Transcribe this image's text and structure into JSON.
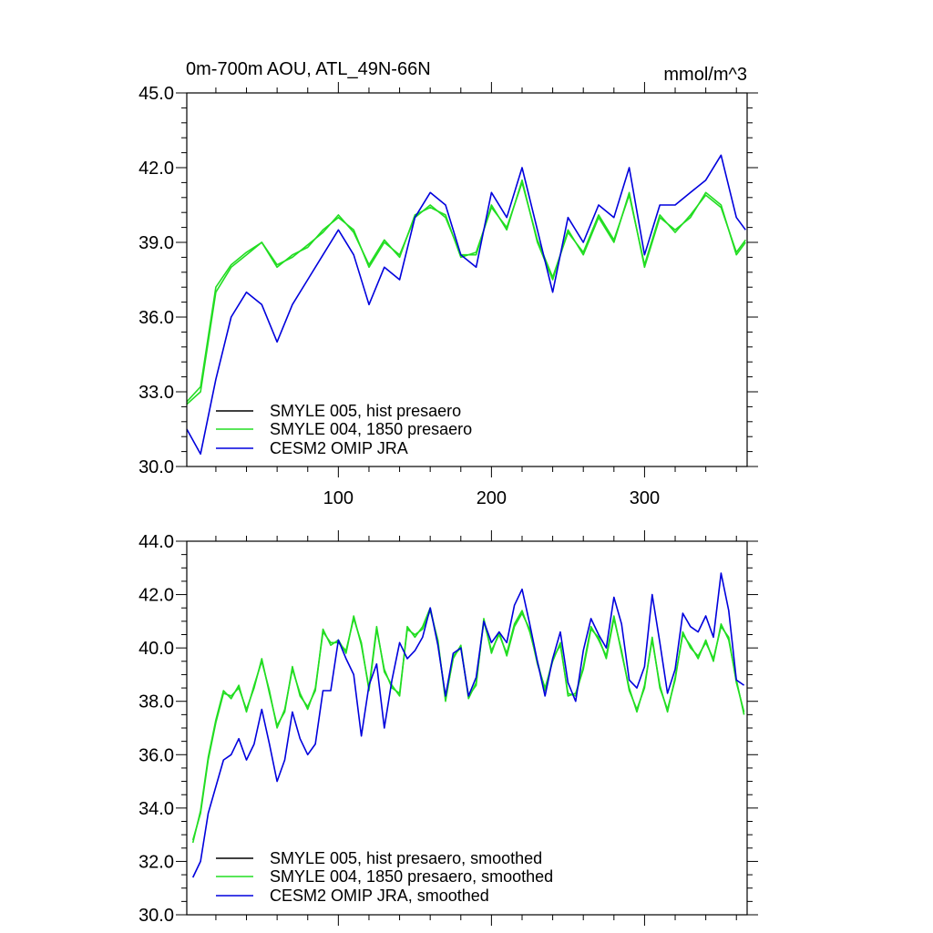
{
  "charts": [
    {
      "title_left": "0m-700m AOU, ATL_49N-66N",
      "title_right": "mmol/m^3",
      "x_tick_labels": [
        "100",
        "200",
        "300"
      ],
      "y_tick_labels": [
        "30.0",
        "33.0",
        "36.0",
        "39.0",
        "42.0",
        "45.0"
      ],
      "legend": [
        "SMYLE 005, hist presaero",
        "SMYLE 004, 1850 presaero",
        "CESM2 OMIP JRA"
      ]
    },
    {
      "title_left": "",
      "title_right": "",
      "x_tick_labels": [],
      "y_tick_labels": [
        "30.0",
        "32.0",
        "34.0",
        "36.0",
        "38.0",
        "40.0",
        "42.0",
        "44.0"
      ],
      "legend": [
        "SMYLE 005, hist presaero, smoothed",
        "SMYLE 004, 1850 presaero, smoothed",
        "CESM2 OMIP JRA, smoothed"
      ]
    }
  ],
  "colors": {
    "smyle005": "#000000",
    "smyle004": "#22dd22",
    "omip": "#0000dd"
  },
  "chart_data": [
    {
      "type": "line",
      "title": "0m-700m AOU, ATL_49N-66N",
      "units": "mmol/m^3",
      "xlim": [
        1,
        367
      ],
      "ylim": [
        30,
        45
      ],
      "x_ticks": [
        100,
        200,
        300
      ],
      "y_ticks": [
        30,
        33,
        36,
        39,
        42,
        45
      ],
      "x": [
        1,
        10,
        20,
        30,
        40,
        50,
        60,
        70,
        80,
        90,
        100,
        110,
        120,
        130,
        140,
        150,
        160,
        170,
        180,
        190,
        200,
        210,
        220,
        230,
        240,
        250,
        260,
        270,
        280,
        290,
        300,
        310,
        320,
        330,
        340,
        350,
        360,
        366
      ],
      "series": [
        {
          "name": "SMYLE 005, hist presaero",
          "color_key": "smyle004",
          "values": [
            32.5,
            33.0,
            37.0,
            38.0,
            38.5,
            39.0,
            38.0,
            38.5,
            38.8,
            39.5,
            40.0,
            39.5,
            38.0,
            39.0,
            38.5,
            40.0,
            40.5,
            40.0,
            38.5,
            38.5,
            40.5,
            39.5,
            41.5,
            39.0,
            37.5,
            39.5,
            38.5,
            40.0,
            39.0,
            41.0,
            38.0,
            40.0,
            39.5,
            40.0,
            41.0,
            40.5,
            38.5,
            39.0
          ]
        },
        {
          "name": "SMYLE 004, 1850 presaero",
          "color_key": "smyle004",
          "values": [
            32.6,
            33.2,
            37.2,
            38.1,
            38.6,
            39.0,
            38.1,
            38.4,
            38.9,
            39.4,
            40.1,
            39.4,
            38.1,
            39.1,
            38.4,
            40.1,
            40.4,
            40.1,
            38.4,
            38.6,
            40.4,
            39.6,
            41.4,
            39.1,
            37.6,
            39.4,
            38.6,
            40.1,
            39.1,
            40.9,
            38.1,
            40.1,
            39.4,
            40.1,
            40.9,
            40.4,
            38.6,
            39.1
          ]
        },
        {
          "name": "CESM2 OMIP JRA",
          "color_key": "omip",
          "values": [
            31.5,
            30.5,
            33.5,
            36.0,
            37.0,
            36.5,
            35.0,
            36.5,
            37.5,
            38.5,
            39.5,
            38.5,
            36.5,
            38.0,
            37.5,
            40.0,
            41.0,
            40.5,
            38.5,
            38.0,
            41.0,
            40.0,
            42.0,
            39.5,
            37.0,
            40.0,
            39.0,
            40.5,
            40.0,
            42.0,
            38.5,
            40.5,
            40.5,
            41.0,
            41.5,
            42.5,
            40.0,
            39.5
          ]
        }
      ]
    },
    {
      "type": "line",
      "xlim": [
        1,
        367
      ],
      "ylim": [
        30,
        44
      ],
      "y_ticks": [
        30,
        32,
        34,
        36,
        38,
        40,
        42,
        44
      ],
      "x": [
        5,
        10,
        15,
        20,
        25,
        30,
        35,
        40,
        45,
        50,
        55,
        60,
        65,
        70,
        75,
        80,
        85,
        90,
        95,
        100,
        105,
        110,
        115,
        120,
        125,
        130,
        135,
        140,
        145,
        150,
        155,
        160,
        165,
        170,
        175,
        180,
        185,
        190,
        195,
        200,
        205,
        210,
        215,
        220,
        225,
        230,
        235,
        240,
        245,
        250,
        255,
        260,
        265,
        270,
        275,
        280,
        285,
        290,
        295,
        300,
        305,
        310,
        315,
        320,
        325,
        330,
        335,
        340,
        345,
        350,
        355,
        360,
        365
      ],
      "series": [
        {
          "name": "SMYLE 005, hist presaero, smoothed",
          "color_key": "smyle004",
          "values": [
            32.8,
            33.8,
            35.8,
            37.2,
            38.3,
            38.2,
            38.5,
            37.7,
            38.5,
            39.6,
            38.3,
            37.1,
            37.6,
            39.3,
            38.2,
            37.8,
            38.4,
            40.7,
            40.1,
            40.3,
            39.8,
            41.2,
            40.1,
            38.5,
            40.8,
            39.1,
            38.6,
            38.2,
            40.8,
            40.4,
            40.8,
            41.5,
            40.2,
            38.1,
            39.6,
            40.1,
            38.1,
            38.7,
            41.0,
            39.9,
            40.5,
            39.8,
            40.9,
            41.4,
            40.6,
            39.5,
            38.4,
            39.6,
            40.1,
            38.3,
            38.2,
            39.3,
            40.8,
            40.3,
            39.7,
            41.2,
            39.8,
            38.5,
            37.6,
            38.6,
            40.3,
            38.6,
            37.6,
            38.9,
            40.5,
            40.1,
            39.6,
            40.3,
            39.5,
            40.9,
            40.3,
            38.8,
            37.5
          ]
        },
        {
          "name": "SMYLE 004, 1850 presaero, smoothed",
          "color_key": "smyle004",
          "values": [
            32.7,
            33.9,
            35.9,
            37.3,
            38.4,
            38.1,
            38.6,
            37.6,
            38.6,
            39.5,
            38.4,
            37.0,
            37.7,
            39.2,
            38.3,
            37.7,
            38.5,
            40.6,
            40.2,
            40.2,
            39.9,
            41.1,
            40.2,
            38.4,
            40.7,
            39.2,
            38.5,
            38.3,
            40.7,
            40.5,
            40.7,
            41.4,
            40.3,
            38.0,
            39.7,
            40.0,
            38.2,
            38.6,
            41.1,
            39.8,
            40.6,
            39.7,
            40.8,
            41.3,
            40.7,
            39.4,
            38.5,
            39.5,
            40.2,
            38.2,
            38.3,
            39.2,
            40.7,
            40.4,
            39.6,
            41.1,
            39.9,
            38.4,
            37.7,
            38.5,
            40.4,
            38.5,
            37.7,
            38.8,
            40.6,
            40.0,
            39.7,
            40.2,
            39.6,
            40.8,
            40.4,
            38.7,
            37.6
          ]
        },
        {
          "name": "CESM2 OMIP JRA, smoothed",
          "color_key": "omip",
          "values": [
            31.4,
            32.0,
            33.8,
            34.8,
            35.8,
            36.0,
            36.6,
            35.8,
            36.4,
            37.7,
            36.4,
            35.0,
            35.8,
            37.6,
            36.6,
            36.0,
            36.4,
            38.4,
            38.4,
            40.3,
            39.6,
            39.0,
            36.7,
            38.6,
            39.4,
            37.0,
            38.8,
            40.2,
            39.6,
            39.9,
            40.4,
            41.5,
            40.1,
            38.2,
            39.8,
            40.0,
            38.2,
            38.9,
            41.0,
            40.2,
            40.6,
            40.2,
            41.6,
            42.2,
            40.9,
            39.5,
            38.2,
            39.6,
            40.6,
            38.7,
            38.0,
            39.9,
            41.1,
            40.5,
            40.0,
            41.9,
            40.9,
            38.8,
            38.5,
            39.3,
            42.0,
            40.2,
            38.3,
            39.2,
            41.3,
            40.8,
            40.6,
            41.2,
            40.4,
            42.8,
            41.4,
            38.8,
            38.6
          ]
        }
      ]
    }
  ]
}
